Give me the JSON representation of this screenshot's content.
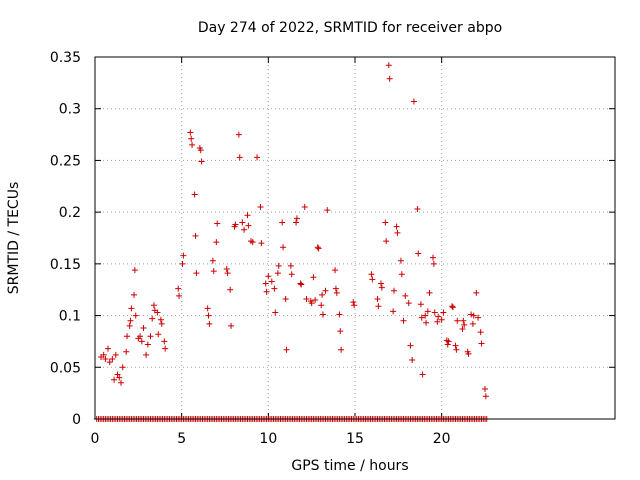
{
  "chart_data": {
    "type": "scatter",
    "title": "Day 274 of 2022, SRMTID for receiver abpo",
    "xlabel": "GPS time / hours",
    "ylabel": "SRMTID / TECUs",
    "xlim": [
      0,
      30
    ],
    "ylim": [
      0,
      0.35
    ],
    "grid": true,
    "marker": "+",
    "color": "#cc0000",
    "x_ticks": [
      0,
      5,
      10,
      15,
      20
    ],
    "x_tick_labels": [
      "0",
      "5",
      "10",
      "15",
      "20"
    ],
    "y_ticks": [
      0,
      0.05,
      0.1,
      0.15,
      0.2,
      0.25,
      0.3,
      0.35
    ],
    "y_tick_labels": [
      "0",
      "0.05",
      "0.1",
      "0.15",
      "0.2",
      "0.25",
      "0.3",
      "0.35"
    ],
    "baseline_x_start": 0.1,
    "baseline_x_end": 22.6,
    "baseline_x_step": 0.1,
    "baseline_y": 0,
    "points": [
      [
        0.35,
        0.06
      ],
      [
        0.5,
        0.062
      ],
      [
        0.6,
        0.058
      ],
      [
        0.75,
        0.068
      ],
      [
        0.85,
        0.055
      ],
      [
        1.0,
        0.058
      ],
      [
        1.1,
        0.038
      ],
      [
        1.2,
        0.062
      ],
      [
        1.3,
        0.043
      ],
      [
        1.4,
        0.04
      ],
      [
        1.5,
        0.035
      ],
      [
        1.6,
        0.05
      ],
      [
        1.8,
        0.065
      ],
      [
        1.85,
        0.08
      ],
      [
        2.0,
        0.09
      ],
      [
        2.05,
        0.095
      ],
      [
        2.1,
        0.107
      ],
      [
        2.25,
        0.12
      ],
      [
        2.3,
        0.144
      ],
      [
        2.35,
        0.1
      ],
      [
        2.5,
        0.078
      ],
      [
        2.6,
        0.08
      ],
      [
        2.7,
        0.075
      ],
      [
        2.8,
        0.088
      ],
      [
        2.95,
        0.062
      ],
      [
        3.05,
        0.072
      ],
      [
        3.2,
        0.08
      ],
      [
        3.3,
        0.097
      ],
      [
        3.4,
        0.11
      ],
      [
        3.45,
        0.105
      ],
      [
        3.6,
        0.103
      ],
      [
        3.65,
        0.082
      ],
      [
        3.8,
        0.096
      ],
      [
        3.85,
        0.092
      ],
      [
        4.0,
        0.075
      ],
      [
        4.05,
        0.068
      ],
      [
        4.8,
        0.126
      ],
      [
        4.85,
        0.119
      ],
      [
        5.05,
        0.15
      ],
      [
        5.1,
        0.158
      ],
      [
        5.5,
        0.277
      ],
      [
        5.55,
        0.271
      ],
      [
        5.6,
        0.265
      ],
      [
        5.75,
        0.217
      ],
      [
        5.8,
        0.177
      ],
      [
        5.85,
        0.141
      ],
      [
        6.05,
        0.262
      ],
      [
        6.1,
        0.26
      ],
      [
        6.15,
        0.249
      ],
      [
        6.5,
        0.107
      ],
      [
        6.55,
        0.1
      ],
      [
        6.6,
        0.092
      ],
      [
        6.8,
        0.153
      ],
      [
        6.85,
        0.143
      ],
      [
        7.0,
        0.171
      ],
      [
        7.05,
        0.189
      ],
      [
        7.6,
        0.145
      ],
      [
        7.65,
        0.141
      ],
      [
        7.8,
        0.125
      ],
      [
        7.85,
        0.09
      ],
      [
        8.05,
        0.186
      ],
      [
        8.1,
        0.188
      ],
      [
        8.3,
        0.275
      ],
      [
        8.35,
        0.253
      ],
      [
        8.5,
        0.19
      ],
      [
        8.6,
        0.183
      ],
      [
        8.8,
        0.197
      ],
      [
        8.85,
        0.187
      ],
      [
        9.0,
        0.172
      ],
      [
        9.1,
        0.171
      ],
      [
        9.35,
        0.253
      ],
      [
        9.55,
        0.205
      ],
      [
        9.6,
        0.17
      ],
      [
        9.85,
        0.131
      ],
      [
        9.9,
        0.123
      ],
      [
        10.0,
        0.138
      ],
      [
        10.2,
        0.133
      ],
      [
        10.35,
        0.126
      ],
      [
        10.4,
        0.103
      ],
      [
        10.55,
        0.141
      ],
      [
        10.6,
        0.148
      ],
      [
        10.8,
        0.19
      ],
      [
        10.85,
        0.166
      ],
      [
        11.0,
        0.116
      ],
      [
        11.05,
        0.067
      ],
      [
        11.3,
        0.148
      ],
      [
        11.35,
        0.14
      ],
      [
        11.6,
        0.19
      ],
      [
        11.65,
        0.194
      ],
      [
        11.85,
        0.131
      ],
      [
        11.9,
        0.13
      ],
      [
        12.1,
        0.205
      ],
      [
        12.2,
        0.116
      ],
      [
        12.45,
        0.114
      ],
      [
        12.5,
        0.112
      ],
      [
        12.6,
        0.137
      ],
      [
        12.7,
        0.115
      ],
      [
        12.85,
        0.166
      ],
      [
        12.9,
        0.165
      ],
      [
        13.05,
        0.11
      ],
      [
        13.1,
        0.12
      ],
      [
        13.15,
        0.101
      ],
      [
        13.3,
        0.124
      ],
      [
        13.4,
        0.202
      ],
      [
        13.85,
        0.144
      ],
      [
        13.9,
        0.126
      ],
      [
        13.95,
        0.122
      ],
      [
        14.1,
        0.101
      ],
      [
        14.15,
        0.085
      ],
      [
        14.2,
        0.067
      ],
      [
        14.9,
        0.113
      ],
      [
        14.95,
        0.11
      ],
      [
        15.95,
        0.14
      ],
      [
        16.0,
        0.135
      ],
      [
        16.3,
        0.116
      ],
      [
        16.35,
        0.109
      ],
      [
        16.5,
        0.131
      ],
      [
        16.55,
        0.127
      ],
      [
        16.75,
        0.19
      ],
      [
        16.8,
        0.172
      ],
      [
        16.95,
        0.342
      ],
      [
        17.0,
        0.329
      ],
      [
        17.2,
        0.104
      ],
      [
        17.25,
        0.124
      ],
      [
        17.4,
        0.186
      ],
      [
        17.45,
        0.18
      ],
      [
        17.65,
        0.153
      ],
      [
        17.7,
        0.14
      ],
      [
        17.8,
        0.095
      ],
      [
        17.9,
        0.119
      ],
      [
        18.1,
        0.112
      ],
      [
        18.2,
        0.071
      ],
      [
        18.3,
        0.057
      ],
      [
        18.4,
        0.307
      ],
      [
        18.6,
        0.203
      ],
      [
        18.65,
        0.16
      ],
      [
        18.8,
        0.111
      ],
      [
        18.85,
        0.098
      ],
      [
        18.9,
        0.043
      ],
      [
        19.05,
        0.1
      ],
      [
        19.1,
        0.093
      ],
      [
        19.2,
        0.104
      ],
      [
        19.3,
        0.122
      ],
      [
        19.5,
        0.156
      ],
      [
        19.55,
        0.15
      ],
      [
        19.6,
        0.103
      ],
      [
        19.75,
        0.094
      ],
      [
        19.8,
        0.099
      ],
      [
        20.0,
        0.096
      ],
      [
        20.1,
        0.103
      ],
      [
        20.3,
        0.076
      ],
      [
        20.35,
        0.072
      ],
      [
        20.4,
        0.075
      ],
      [
        20.6,
        0.109
      ],
      [
        20.65,
        0.108
      ],
      [
        20.8,
        0.071
      ],
      [
        20.85,
        0.067
      ],
      [
        20.9,
        0.095
      ],
      [
        21.2,
        0.087
      ],
      [
        21.25,
        0.095
      ],
      [
        21.3,
        0.091
      ],
      [
        21.5,
        0.065
      ],
      [
        21.55,
        0.063
      ],
      [
        21.7,
        0.101
      ],
      [
        21.8,
        0.092
      ],
      [
        21.85,
        0.1
      ],
      [
        22.0,
        0.122
      ],
      [
        22.1,
        0.098
      ],
      [
        22.25,
        0.084
      ],
      [
        22.3,
        0.073
      ],
      [
        22.5,
        0.029
      ],
      [
        22.55,
        0.022
      ]
    ]
  }
}
